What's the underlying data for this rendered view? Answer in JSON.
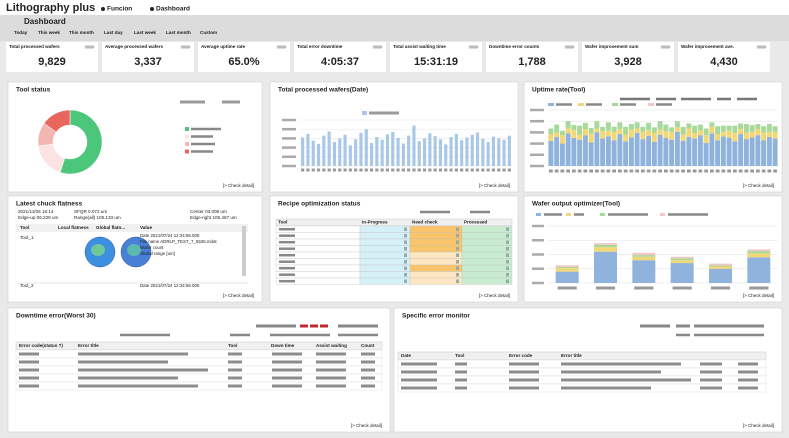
{
  "header": {
    "title": "Lithography plus",
    "nav": [
      "Funcion",
      "Dashboard"
    ],
    "page": "Dashboard",
    "periods": [
      "Today",
      "This week",
      "This month",
      "Last day",
      "Last week",
      "Last month",
      "Custom"
    ]
  },
  "kpis": [
    {
      "label": "Total processed wafers",
      "value": "9,829",
      "color": "#222222"
    },
    {
      "label": "Average processed wafers",
      "value": "3,337",
      "color": "#222222"
    },
    {
      "label": "Average uptime rate",
      "value": "65.0%",
      "color": "#c0282d"
    },
    {
      "label": "Total error downtime",
      "value": "4:05:37",
      "color": "#222222"
    },
    {
      "label": "Total assist waiting time",
      "value": "15:31:19",
      "color": "#c0282d"
    },
    {
      "label": "Downtime error counts",
      "value": "1,788",
      "color": "#c0282d"
    },
    {
      "label": "Wafer improvement sum",
      "value": "3,928",
      "color": "#222222"
    },
    {
      "label": "Wafer improvement ave.",
      "value": "4,430",
      "color": "#c0282d"
    }
  ],
  "tool_status": {
    "title": "Tool status",
    "values": [
      55,
      18,
      12,
      15
    ],
    "colors": [
      "#4cc67a",
      "#fbe3e3",
      "#f4b6b0",
      "#e8665c"
    ],
    "link": "[> Check detail]"
  },
  "processed": {
    "title": "Total processed wafers(Date)",
    "color": "#a9c8e8",
    "ylim": [
      0,
      100
    ],
    "yticks": [
      0,
      20,
      40,
      60,
      80,
      100
    ],
    "values": [
      62,
      70,
      55,
      48,
      66,
      75,
      52,
      60,
      68,
      45,
      58,
      72,
      80,
      50,
      63,
      57,
      69,
      74,
      61,
      49,
      66,
      88,
      54,
      60,
      71,
      65,
      58,
      47,
      63,
      70,
      56,
      62,
      68,
      73,
      59,
      52,
      64,
      60,
      57,
      66
    ],
    "link": "[> Check detail]"
  },
  "uptime": {
    "title": "Uptime rate(Tool)",
    "ylim": [
      0,
      100
    ],
    "yticks": [
      0,
      20,
      40,
      60,
      80,
      100
    ],
    "series": [
      {
        "color": "#8fb3dc",
        "values": [
          45,
          52,
          40,
          58,
          50,
          47,
          55,
          42,
          60,
          49,
          53,
          46,
          57,
          44,
          51,
          59,
          48,
          54,
          43,
          56,
          50,
          47,
          61,
          45,
          52,
          49,
          55,
          41,
          58,
          46,
          53,
          50,
          44,
          57,
          48,
          51,
          55,
          46,
          52,
          49
        ]
      },
      {
        "color": "#f3d777",
        "values": [
          12,
          8,
          15,
          10,
          14,
          9,
          11,
          16,
          7,
          13,
          10,
          15,
          9,
          12,
          14,
          8,
          13,
          10,
          16,
          9,
          12,
          14,
          8,
          11,
          15,
          10,
          9,
          14,
          12,
          11,
          8,
          13,
          15,
          9,
          12,
          10,
          11,
          14,
          9,
          12
        ]
      },
      {
        "color": "#a7d99a",
        "values": [
          10,
          14,
          8,
          12,
          9,
          16,
          11,
          10,
          13,
          8,
          15,
          9,
          12,
          14,
          10,
          11,
          9,
          13,
          10,
          15,
          12,
          8,
          11,
          14,
          9,
          13,
          10,
          12,
          8,
          14,
          11,
          9,
          13,
          10,
          15,
          12,
          9,
          11,
          14,
          10
        ]
      }
    ],
    "link": "[> Check detail]"
  },
  "chuck": {
    "title": "Latest chuck flatness",
    "info": [
      "2021/11/05 16:14",
      "SFQR 0.072 um",
      "Center 03.008 um",
      "Edge-up 06.229 um",
      "Range(all) 105.133 um",
      "Edge-right 105.467 um"
    ],
    "columns": [
      "Tool",
      "Local flatness",
      "Global flatn...",
      "Value"
    ],
    "rows": [
      {
        "tool": "Tool_1",
        "lines": [
          "Date 2021/07/24 12:34:56.000",
          "File name ADRLP_TEST_7_5536.mdat",
          "Wafer count",
          "Global range [um]"
        ]
      },
      {
        "tool": "Tool_2",
        "lines": [
          "Date 2021/07/24 12:34:56.000"
        ]
      }
    ],
    "link": "[> Check detail]"
  },
  "recipe": {
    "title": "Recipe optimization status",
    "columns": [
      "Tool",
      "In-Progress",
      "Need check",
      "Processed"
    ],
    "link": "[> Check detail]"
  },
  "output": {
    "title": "Wafer output optimizer(Tool)",
    "ylim": [
      0,
      100
    ],
    "yticks": [
      0,
      25,
      50,
      75,
      100
    ],
    "series": [
      {
        "color": "#8fb3dc",
        "values": [
          20,
          55,
          40,
          35,
          25,
          45
        ]
      },
      {
        "color": "#f3d777",
        "values": [
          6,
          8,
          6,
          5,
          4,
          7
        ]
      },
      {
        "color": "#a7d99a",
        "values": [
          2,
          4,
          3,
          3,
          2,
          4
        ]
      },
      {
        "color": "#f4c6c6",
        "values": [
          3,
          3,
          4,
          3,
          3,
          3
        ]
      }
    ],
    "link": "[> Check detail]"
  },
  "downtime": {
    "title": "Downtime error(Worst 30)",
    "columns": [
      "Error code(status ?)",
      "Error title",
      "Tool",
      "Down time",
      "Assist waiting",
      "Count"
    ],
    "link": "[> Check detail]"
  },
  "specific": {
    "title": "Specific error monitor",
    "columns": [
      "Date",
      "Tool",
      "Error code",
      "Error title"
    ],
    "link": "[> Check detail]"
  }
}
